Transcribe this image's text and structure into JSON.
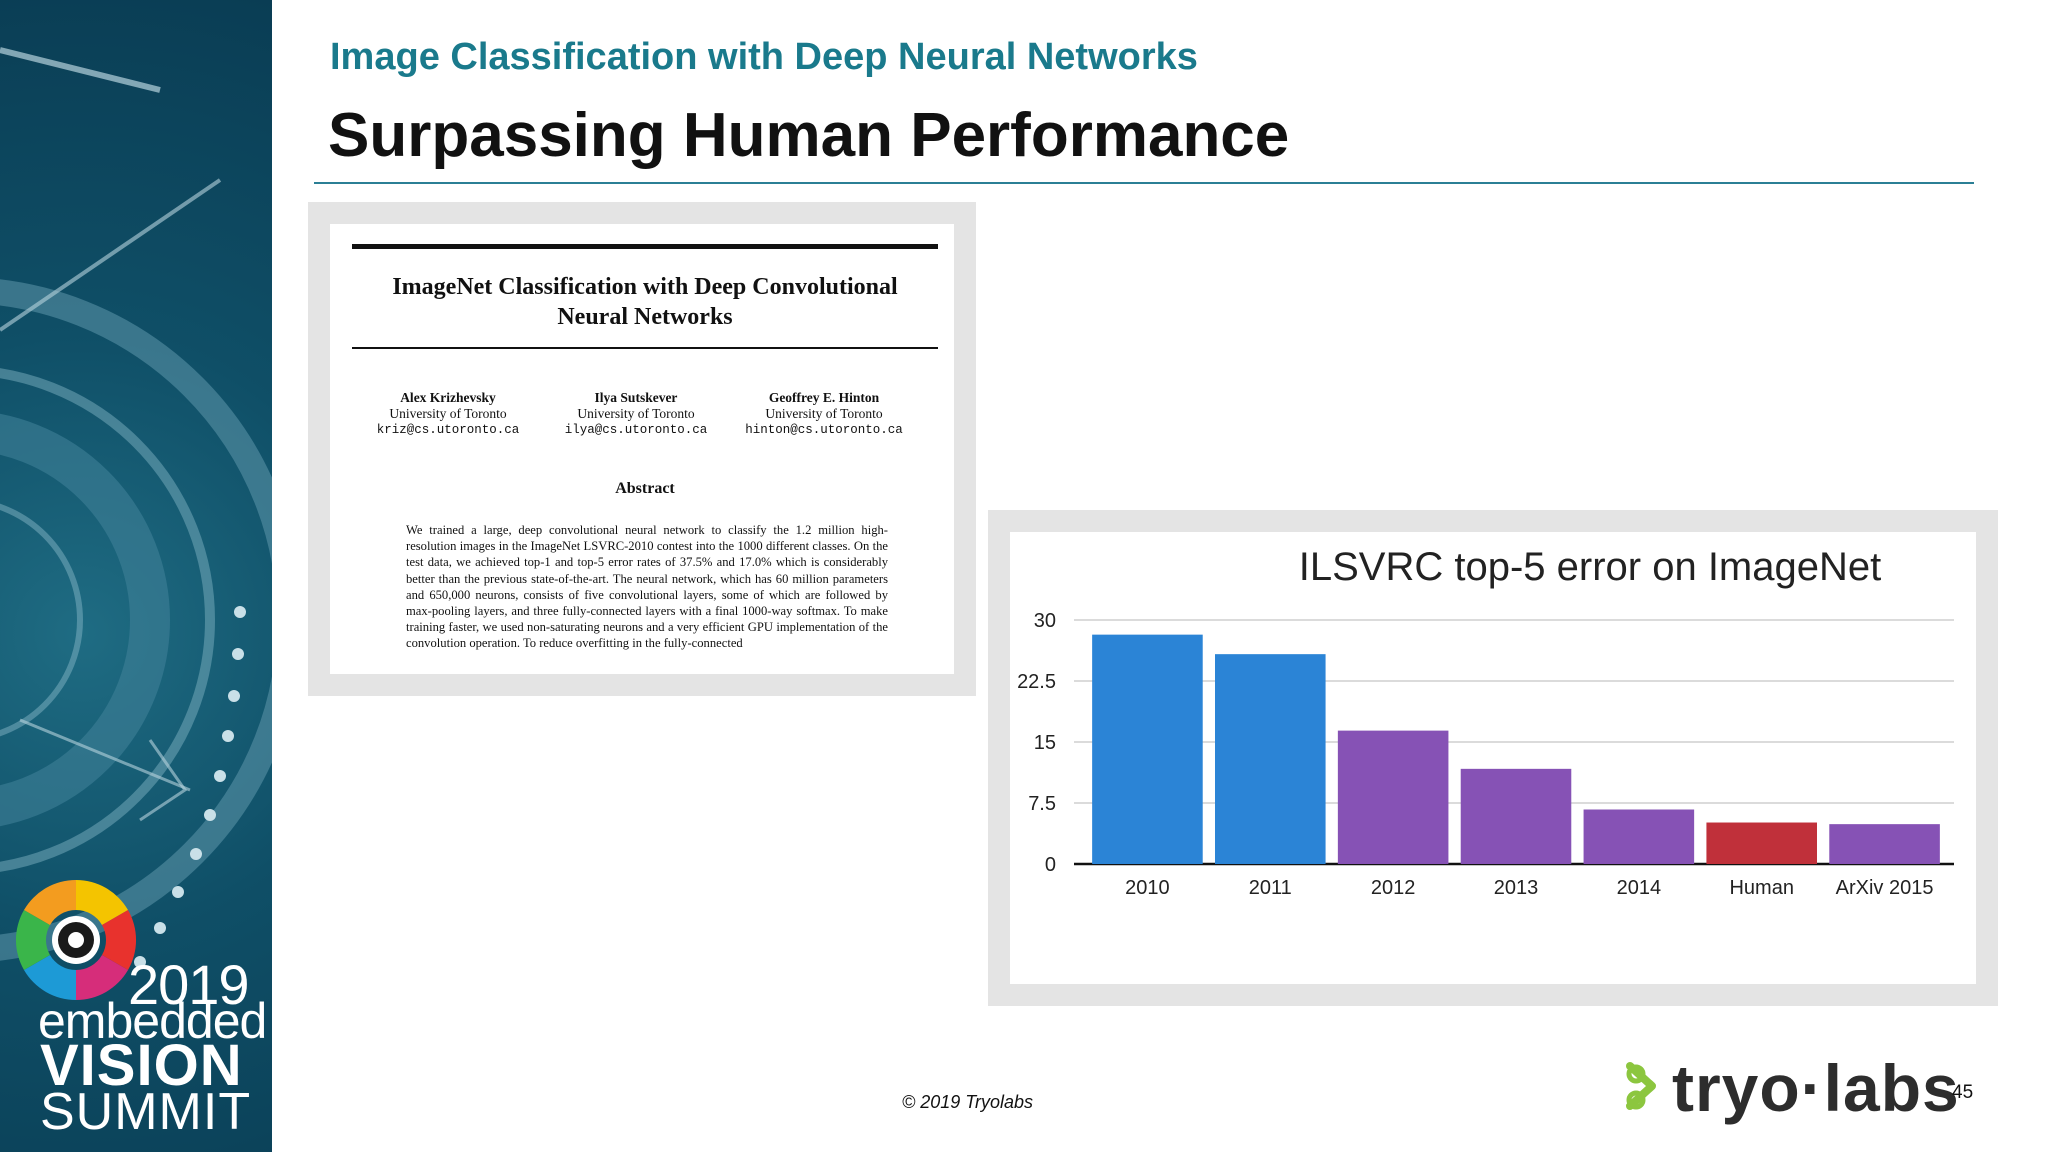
{
  "header": {
    "subtitle": "Image Classification with Deep Neural Networks",
    "title": "Surpassing Human Performance"
  },
  "paper": {
    "title_line1": "ImageNet Classification with Deep Convolutional",
    "title_line2": "Neural Networks",
    "authors": [
      {
        "name": "Alex Krizhevsky",
        "affiliation": "University of Toronto",
        "email": "kriz@cs.utoronto.ca"
      },
      {
        "name": "Ilya Sutskever",
        "affiliation": "University of Toronto",
        "email": "ilya@cs.utoronto.ca"
      },
      {
        "name": "Geoffrey E. Hinton",
        "affiliation": "University of Toronto",
        "email": "hinton@cs.utoronto.ca"
      }
    ],
    "abstract_heading": "Abstract",
    "abstract_text": "We trained a large, deep convolutional neural network to classify the 1.2 million high-resolution images in the ImageNet LSVRC-2010 contest into the 1000 different classes. On the test data, we achieved top-1 and top-5 error rates of 37.5% and 17.0% which is considerably better than the previous state-of-the-art. The neural network, which has 60 million parameters and 650,000 neurons, consists of five convolutional layers, some of which are followed by max-pooling layers, and three fully-connected layers with a final 1000-way softmax. To make training faster, we used non-saturating neurons and a very efficient GPU implementation of the convolution operation. To reduce overfitting in the fully-connected"
  },
  "chart_data": {
    "type": "bar",
    "title": "ILSVRC top-5 error on ImageNet",
    "xlabel": "",
    "ylabel": "",
    "categories": [
      "2010",
      "2011",
      "2012",
      "2013",
      "2014",
      "Human",
      "ArXiv 2015"
    ],
    "values": [
      28.2,
      25.8,
      16.4,
      11.7,
      6.7,
      5.1,
      4.9
    ],
    "ylim": [
      0,
      30
    ],
    "yticks": [
      "0",
      "7.5",
      "15",
      "22.5",
      "30"
    ],
    "grid": true,
    "legend": "none",
    "bar_colors": [
      "#2b84d6",
      "#2b84d6",
      "#8652b5",
      "#8652b5",
      "#8652b5",
      "#c0303a",
      "#8652b5"
    ]
  },
  "footer": {
    "copyright": "© 2019 Tryolabs",
    "brand": "tryo·labs",
    "page_number": "45"
  },
  "event_logo": {
    "year": "2019",
    "line1": "embedded",
    "line2": "VISION",
    "line3": "SUMMIT"
  }
}
